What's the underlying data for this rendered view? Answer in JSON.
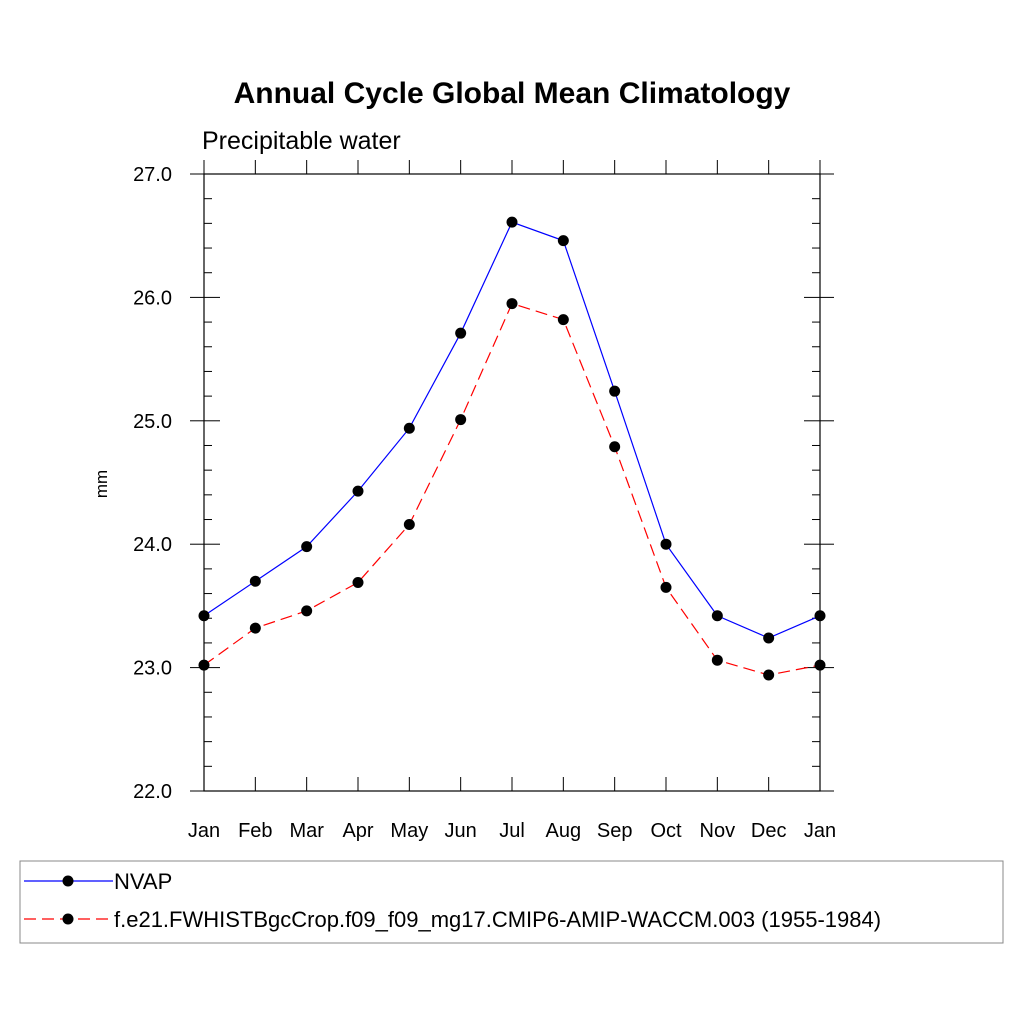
{
  "chart_data": {
    "type": "line",
    "title": "Annual Cycle Global Mean Climatology",
    "subtitle": "Precipitable water",
    "xlabel": "",
    "ylabel": "mm",
    "categories": [
      "Jan",
      "Feb",
      "Mar",
      "Apr",
      "May",
      "Jun",
      "Jul",
      "Aug",
      "Sep",
      "Oct",
      "Nov",
      "Dec",
      "Jan"
    ],
    "ylim": [
      22.0,
      27.0
    ],
    "yticks": [
      "22.0",
      "23.0",
      "24.0",
      "25.0",
      "26.0",
      "27.0"
    ],
    "legend_position": "bottom",
    "series": [
      {
        "name": "NVAP",
        "color": "#0000ff",
        "style": "solid",
        "marker": "filled-circle",
        "values": [
          23.42,
          23.7,
          23.98,
          24.43,
          24.94,
          25.71,
          26.61,
          26.46,
          25.24,
          24.0,
          23.42,
          23.24,
          23.42
        ]
      },
      {
        "name": "f.e21.FWHISTBgcCrop.f09_f09_mg17.CMIP6-AMIP-WACCM.003 (1955-1984)",
        "color": "#ff0000",
        "style": "dashed",
        "marker": "filled-circle",
        "values": [
          23.02,
          23.32,
          23.46,
          23.69,
          24.16,
          25.01,
          25.95,
          25.82,
          24.79,
          23.65,
          23.06,
          22.94,
          23.02
        ]
      }
    ]
  }
}
